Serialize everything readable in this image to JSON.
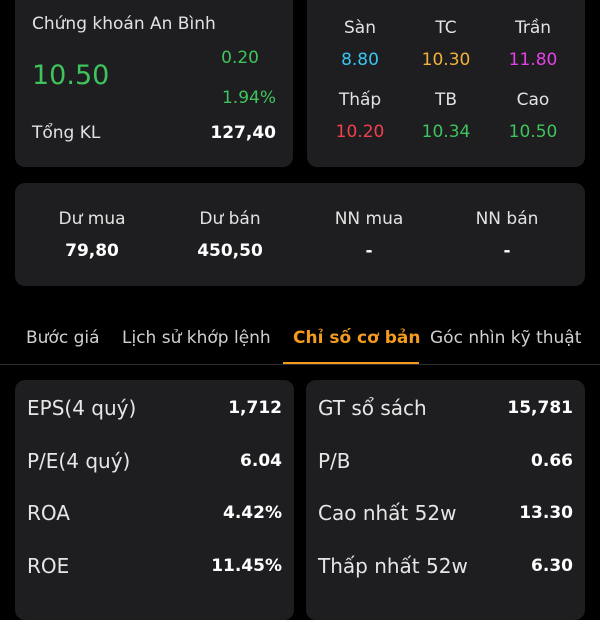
{
  "quote": {
    "company_name": "Chứng khoán An Bình",
    "price": "10.50",
    "change": "0.20",
    "change_pct": "1.94%",
    "volume_label": "Tổng KL",
    "volume_value": "127,40",
    "up_color": "#3fc35c"
  },
  "levels": {
    "floor": {
      "label": "Sàn",
      "value": "8.80",
      "color": "#37c6f2"
    },
    "reference": {
      "label": "TC",
      "value": "10.30",
      "color": "#f2b23a"
    },
    "ceiling": {
      "label": "Trần",
      "value": "11.80",
      "color": "#e640e6"
    },
    "low": {
      "label": "Thấp",
      "value": "10.20",
      "color": "#f0404d"
    },
    "average": {
      "label": "TB",
      "value": "10.34",
      "color": "#3fc35c"
    },
    "high": {
      "label": "Cao",
      "value": "10.50",
      "color": "#3fc35c"
    }
  },
  "depth": {
    "bid_remain": {
      "label": "Dư mua",
      "value": "79,80"
    },
    "ask_remain": {
      "label": "Dư bán",
      "value": "450,50"
    },
    "foreign_buy": {
      "label": "NN mua",
      "value": "-"
    },
    "foreign_sell": {
      "label": "NN bán",
      "value": "-"
    }
  },
  "tabs": [
    {
      "label": "Bước giá",
      "active": false
    },
    {
      "label": "Lịch sử khớp lệnh",
      "active": false
    },
    {
      "label": "Chỉ số cơ bản",
      "active": true
    },
    {
      "label": "Góc nhìn kỹ thuật",
      "active": false
    }
  ],
  "accent_color": "#f29b1d",
  "metrics_left": [
    {
      "label": "EPS(4 quý)",
      "value": "1,712"
    },
    {
      "label": "P/E(4 quý)",
      "value": "6.04"
    },
    {
      "label": "ROA",
      "value": "4.42%"
    },
    {
      "label": "ROE",
      "value": "11.45%"
    }
  ],
  "metrics_right": [
    {
      "label": "GT sổ sách",
      "value": "15,781"
    },
    {
      "label": "P/B",
      "value": "0.66"
    },
    {
      "label": "Cao nhất 52w",
      "value": "13.30"
    },
    {
      "label": "Thấp nhất 52w",
      "value": "6.30"
    }
  ]
}
